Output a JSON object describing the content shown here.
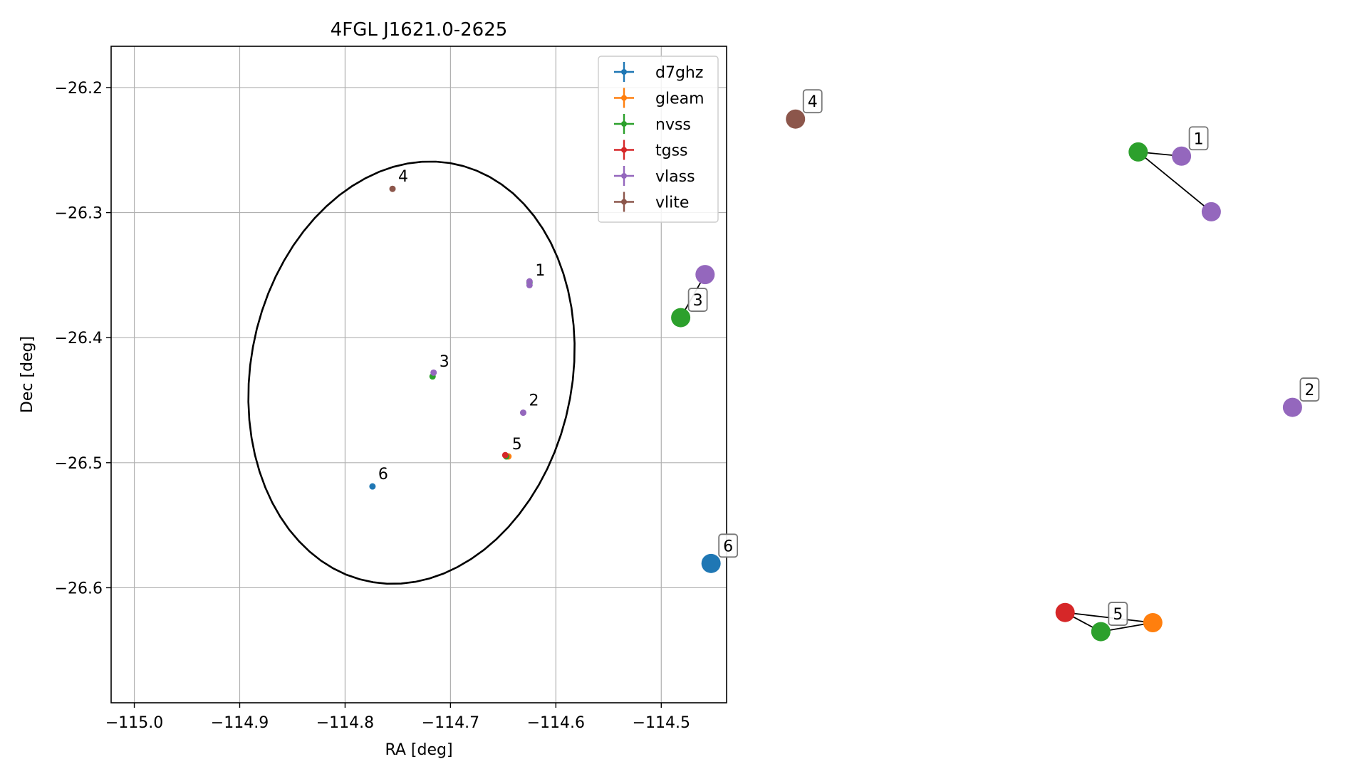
{
  "chart_data": [
    {
      "type": "scatter",
      "title": "4FGL J1621.0-2625",
      "xlabel": "RA [deg]",
      "ylabel": "Dec [deg]",
      "xlim": [
        -115.022,
        -114.438
      ],
      "ylim": [
        -26.692,
        -26.167
      ],
      "xticks": [
        -115.0,
        -114.9,
        -114.8,
        -114.7,
        -114.6,
        -114.5
      ],
      "yticks": [
        -26.2,
        -26.3,
        -26.4,
        -26.5,
        -26.6
      ],
      "xtick_labels": [
        "−115.0",
        "−114.9",
        "−114.8",
        "−114.7",
        "−114.6",
        "−114.5"
      ],
      "ytick_labels": [
        "−26.2",
        "−26.3",
        "−26.4",
        "−26.5",
        "−26.6"
      ],
      "grid": true,
      "legend_position": "top-right",
      "ellipse": {
        "center_ra": -114.737,
        "center_dec": -26.428,
        "semi_major_deg": 0.171,
        "semi_minor_deg": 0.136,
        "angle_deg": 75,
        "color": "#000000"
      },
      "series": [
        {
          "name": "d7ghz",
          "color": "#1f77b4",
          "points": [
            {
              "ra": -114.774,
              "dec": -26.519
            }
          ]
        },
        {
          "name": "gleam",
          "color": "#ff7f0e",
          "points": [
            {
              "ra": -114.645,
              "dec": -26.495
            }
          ]
        },
        {
          "name": "nvss",
          "color": "#2ca02c",
          "points": [
            {
              "ra": -114.625,
              "dec": -26.356
            },
            {
              "ra": -114.717,
              "dec": -26.431
            },
            {
              "ra": -114.647,
              "dec": -26.495
            }
          ]
        },
        {
          "name": "tgss",
          "color": "#d62728",
          "points": [
            {
              "ra": -114.648,
              "dec": -26.494
            }
          ]
        },
        {
          "name": "vlass",
          "color": "#9467bd",
          "points": [
            {
              "ra": -114.625,
              "dec": -26.355
            },
            {
              "ra": -114.625,
              "dec": -26.358
            },
            {
              "ra": -114.631,
              "dec": -26.46
            },
            {
              "ra": -114.716,
              "dec": -26.428
            }
          ]
        },
        {
          "name": "vlite",
          "color": "#8c564b",
          "points": [
            {
              "ra": -114.755,
              "dec": -26.281
            }
          ]
        }
      ],
      "annotations": [
        {
          "label": "1",
          "ra": -114.625,
          "dec": -26.356
        },
        {
          "label": "2",
          "ra": -114.631,
          "dec": -26.46
        },
        {
          "label": "3",
          "ra": -114.716,
          "dec": -26.429
        },
        {
          "label": "4",
          "ra": -114.755,
          "dec": -26.281
        },
        {
          "label": "5",
          "ra": -114.647,
          "dec": -26.495
        },
        {
          "label": "6",
          "ra": -114.774,
          "dec": -26.519
        }
      ]
    },
    {
      "type": "network",
      "nodes": [
        {
          "id": "g1-nvss",
          "series": "nvss",
          "color": "#2ca02c",
          "x": 0.655,
          "y": 0.865
        },
        {
          "id": "g1-vlass-a",
          "series": "vlass",
          "color": "#9467bd",
          "x": 0.735,
          "y": 0.858
        },
        {
          "id": "g1-vlass-b",
          "series": "vlass",
          "color": "#9467bd",
          "x": 0.79,
          "y": 0.765
        },
        {
          "id": "g2-vlass",
          "series": "vlass",
          "color": "#9467bd",
          "x": 0.94,
          "y": 0.438
        },
        {
          "id": "g3-vlass",
          "series": "vlass",
          "color": "#9467bd",
          "x": -0.145,
          "y": 0.66
        },
        {
          "id": "g3-nvss",
          "series": "nvss",
          "color": "#2ca02c",
          "x": -0.19,
          "y": 0.588
        },
        {
          "id": "g4-vlite",
          "series": "vlite",
          "color": "#8c564b",
          "x": 0.022,
          "y": 0.92
        },
        {
          "id": "g5-tgss",
          "series": "tgss",
          "color": "#d62728",
          "x": 0.52,
          "y": 0.095
        },
        {
          "id": "g5-nvss",
          "series": "nvss",
          "color": "#2ca02c",
          "x": 0.586,
          "y": 0.063
        },
        {
          "id": "g5-gleam",
          "series": "gleam",
          "color": "#ff7f0e",
          "x": 0.682,
          "y": 0.078
        },
        {
          "id": "g6-d7ghz",
          "series": "d7ghz",
          "color": "#1f77b4",
          "x": -0.134,
          "y": 0.177
        }
      ],
      "edges": [
        [
          "g1-nvss",
          "g1-vlass-a"
        ],
        [
          "g1-nvss",
          "g1-vlass-b"
        ],
        [
          "g3-vlass",
          "g3-nvss"
        ],
        [
          "g5-tgss",
          "g5-nvss"
        ],
        [
          "g5-tgss",
          "g5-gleam"
        ],
        [
          "g5-nvss",
          "g5-gleam"
        ]
      ],
      "labels": [
        {
          "label": "1",
          "node": "g1-vlass-a"
        },
        {
          "label": "2",
          "node": "g2-vlass"
        },
        {
          "label": "3",
          "node": "g3-nvss"
        },
        {
          "label": "4",
          "node": "g4-vlite"
        },
        {
          "label": "5",
          "node": "g5-nvss"
        },
        {
          "label": "6",
          "node": "g6-d7ghz"
        }
      ]
    }
  ]
}
